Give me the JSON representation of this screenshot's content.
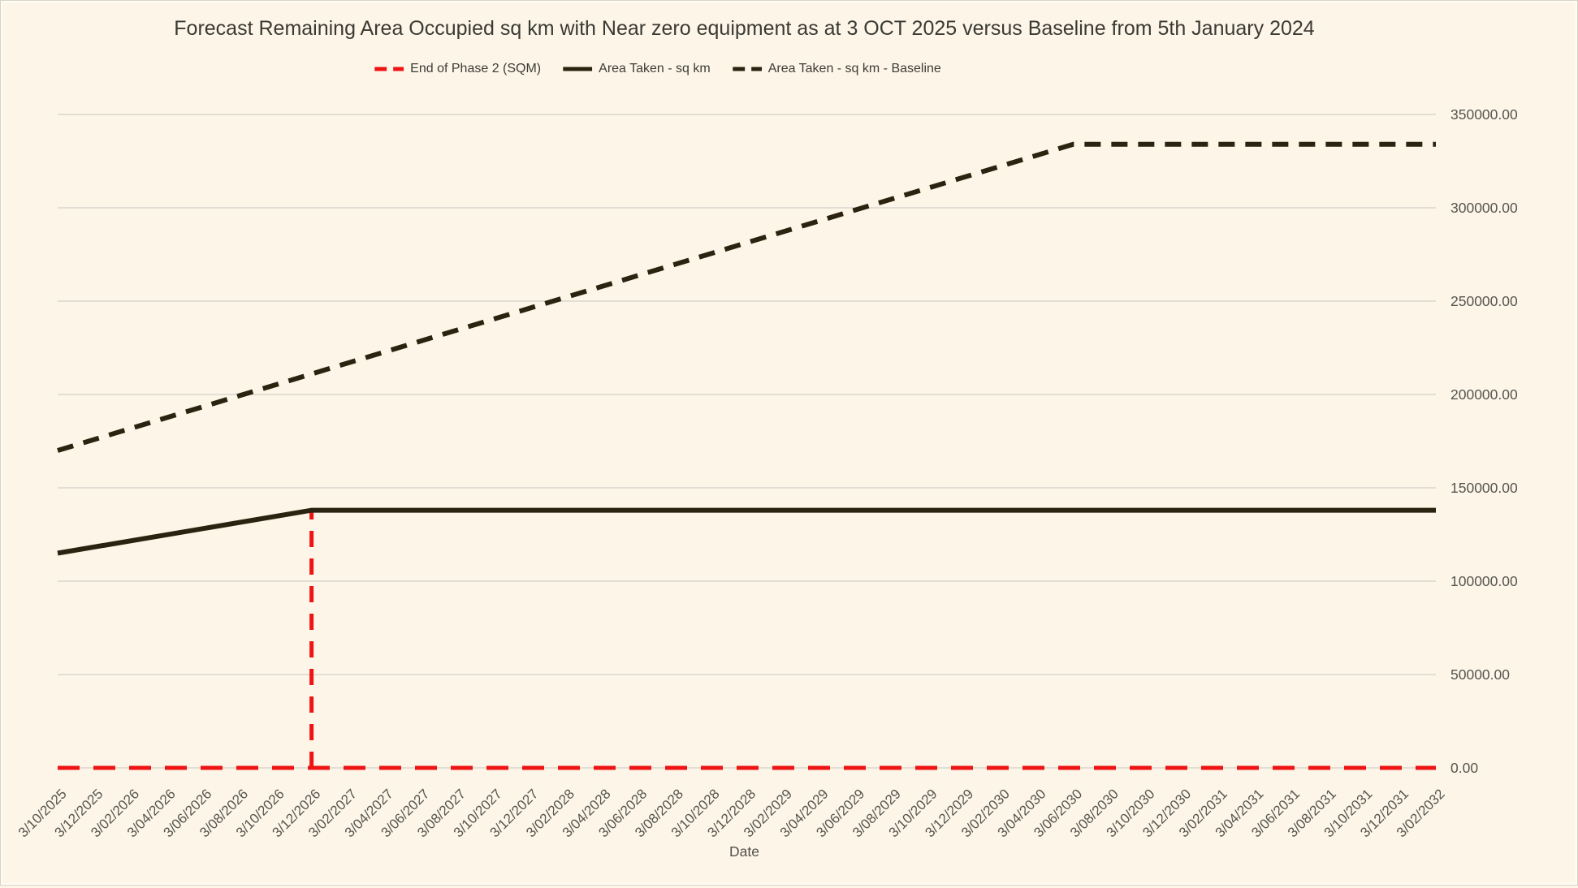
{
  "colors": {
    "background": "#fdf6e8",
    "grid": "#d9d6cf",
    "tick_text": "#55544f",
    "title_text": "#3a3a34",
    "red": "#ee1414",
    "dark": "#2b2310"
  },
  "chart_data": {
    "type": "line",
    "title": "Forecast Remaining Area Occupied sq km with Near zero equipment as at 3 OCT 2025 versus Baseline from 5th January 2024",
    "xlabel": "Date",
    "ylabel": "",
    "ylim": [
      0,
      350000
    ],
    "grid": true,
    "legend_position": "top-center",
    "y_axis_side": "right",
    "y_tick_values": [
      0,
      50000,
      100000,
      150000,
      200000,
      250000,
      300000,
      350000
    ],
    "y_tick_labels": [
      "0.00",
      "50000.00",
      "100000.00",
      "150000.00",
      "200000.00",
      "250000.00",
      "300000.00",
      "350000.00"
    ],
    "x_ticks": [
      "3/10/2025",
      "3/12/2025",
      "3/02/2026",
      "3/04/2026",
      "3/06/2026",
      "3/08/2026",
      "3/10/2026",
      "3/12/2026",
      "3/02/2027",
      "3/04/2027",
      "3/06/2027",
      "3/08/2027",
      "3/10/2027",
      "3/12/2027",
      "3/02/2028",
      "3/04/2028",
      "3/06/2028",
      "3/08/2028",
      "3/10/2028",
      "3/12/2028",
      "3/02/2029",
      "3/04/2029",
      "3/06/2029",
      "3/08/2029",
      "3/10/2029",
      "3/12/2029",
      "3/02/2030",
      "3/04/2030",
      "3/06/2030",
      "3/08/2030",
      "3/10/2030",
      "3/12/2030",
      "3/02/2031",
      "3/04/2031",
      "3/06/2031",
      "3/08/2031",
      "3/10/2031",
      "3/12/2031",
      "3/02/2032"
    ],
    "series": [
      {
        "name": "End of Phase 2 (SQM)",
        "line_style": "dashed",
        "color": "#ee1414",
        "width": 5,
        "dash": "27 17",
        "points": [
          {
            "x": "3/10/2025",
            "y": 0
          },
          {
            "x": "3/02/2032",
            "y": 0
          }
        ],
        "vertical_marker": {
          "x": "3/12/2026",
          "y_from": 0,
          "y_to": 138000,
          "dash": "20 14",
          "width": 5
        }
      },
      {
        "name": "Area Taken - sq km",
        "line_style": "solid",
        "color": "#2b2310",
        "width": 6,
        "points": [
          {
            "x": "3/10/2025",
            "y": 115000
          },
          {
            "x": "3/12/2026",
            "y": 138000
          },
          {
            "x": "3/02/2032",
            "y": 138000
          }
        ]
      },
      {
        "name": "Area Taken - sq km - Baseline",
        "line_style": "dashed",
        "color": "#2b2310",
        "width": 6,
        "dash": "20 13",
        "points": [
          {
            "x": "3/10/2025",
            "y": 170000
          },
          {
            "x": "3/06/2030",
            "y": 334000
          },
          {
            "x": "3/02/2032",
            "y": 334000
          }
        ]
      }
    ]
  }
}
